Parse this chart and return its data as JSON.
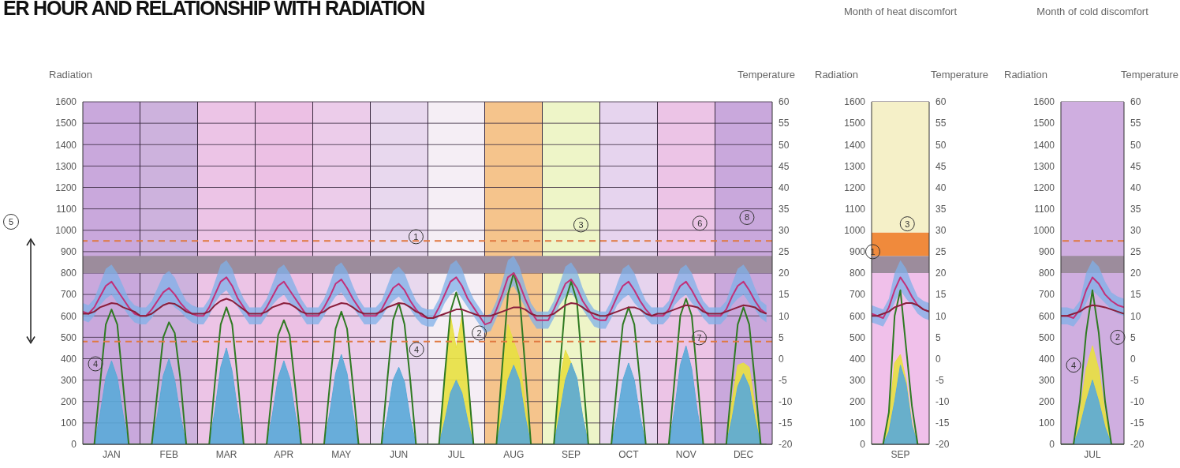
{
  "chart_data": [
    {
      "type": "line",
      "title": "ER HOUR AND RELATIONSHIP WITH RADIATION",
      "ylabel": "Radiation",
      "y2label": "Temperature",
      "categories": [
        null,
        null,
        null,
        null,
        null,
        "JAN",
        null,
        null,
        null,
        null,
        null,
        null,
        null,
        null,
        null,
        "FEB",
        null,
        null,
        null,
        null,
        null,
        null,
        null,
        null,
        null,
        "MAR",
        null,
        null,
        null,
        null,
        null,
        null,
        null,
        null,
        null,
        "APR",
        null,
        null,
        null,
        null,
        null,
        null,
        null,
        null,
        null,
        "MAY",
        null,
        null,
        null,
        null,
        null,
        null,
        null,
        null,
        null,
        "JUN",
        null,
        null,
        null,
        null,
        null,
        null,
        null,
        null,
        null,
        "JUL",
        null,
        null,
        null,
        null,
        null,
        null,
        null,
        null,
        null,
        "AUG",
        null,
        null,
        null,
        null,
        null,
        null,
        null,
        null,
        null,
        "SEP",
        null,
        null,
        null,
        null,
        null,
        null,
        null,
        null,
        null,
        "OCT",
        null,
        null,
        null,
        null,
        null,
        null,
        null,
        null,
        null,
        "NOV",
        null,
        null,
        null,
        null,
        null,
        null,
        null,
        null,
        null,
        "DEC",
        null,
        null,
        null,
        null
      ],
      "ylim": [
        0,
        1600
      ],
      "yticks": [
        0,
        100,
        200,
        300,
        400,
        500,
        600,
        700,
        800,
        900,
        1000,
        1100,
        1200,
        1300,
        1400,
        1500,
        1600
      ],
      "y2lim": [
        -20,
        60
      ],
      "y2ticks": [
        -20,
        -15,
        -10,
        -5,
        0,
        5,
        10,
        15,
        20,
        25,
        30,
        35,
        40,
        45,
        50,
        55,
        60
      ],
      "grid": "y",
      "bands": [
        {
          "axis": "y",
          "from": 800,
          "to": 880,
          "color": "#9c8c9c"
        }
      ],
      "ref_lines": [
        {
          "axis": "y2",
          "value": 27.5,
          "color": "#e07840",
          "line_style": "dashed"
        },
        {
          "axis": "y2",
          "value": 4,
          "color": "#e07840",
          "line_style": "dashed"
        }
      ],
      "annotations": [
        "1",
        "2",
        "3",
        "4",
        "4",
        "5",
        "6",
        "7",
        "8"
      ],
      "series": [
        {
          "type": "area",
          "color": "#e8e040",
          "values": [
            null,
            null,
            null,
            null,
            null,
            null,
            null,
            null,
            null,
            null,
            null,
            null,
            null,
            null,
            null,
            null,
            null,
            null,
            null,
            null,
            null,
            null,
            null,
            null,
            null,
            null,
            null,
            null,
            null,
            null,
            null,
            null,
            null,
            null,
            null,
            null,
            null,
            null,
            null,
            null,
            null,
            null,
            null,
            null,
            null,
            null,
            null,
            null,
            null,
            null,
            null,
            null,
            null,
            null,
            null,
            null,
            null,
            null,
            null,
            null,
            0,
            0,
            0,
            320,
            600,
            450,
            600,
            320,
            0,
            0,
            0,
            0,
            0,
            330,
            560,
            480,
            400,
            200,
            0,
            0,
            0,
            0,
            0,
            300,
            440,
            380,
            300,
            130,
            0,
            0,
            null,
            null,
            null,
            null,
            null,
            null,
            null,
            null,
            null,
            null,
            null,
            null,
            null,
            null,
            null,
            null,
            null,
            null,
            null,
            null,
            0,
            0,
            0,
            200,
            370,
            380,
            360,
            180,
            0,
            0
          ]
        },
        {
          "type": "area",
          "color": "#5aaad8",
          "values": [
            0,
            0,
            0,
            140,
            310,
            390,
            310,
            140,
            0,
            0,
            0,
            0,
            0,
            140,
            320,
            400,
            300,
            130,
            0,
            0,
            0,
            0,
            0,
            160,
            360,
            450,
            340,
            150,
            0,
            0,
            0,
            0,
            0,
            140,
            310,
            390,
            310,
            140,
            0,
            0,
            0,
            0,
            0,
            150,
            330,
            420,
            330,
            150,
            0,
            0,
            0,
            0,
            0,
            130,
            300,
            360,
            290,
            120,
            0,
            0,
            0,
            0,
            0,
            110,
            240,
            300,
            240,
            110,
            0,
            0,
            0,
            0,
            0,
            130,
            300,
            370,
            300,
            130,
            0,
            0,
            0,
            0,
            0,
            140,
            300,
            380,
            310,
            130,
            0,
            0,
            0,
            0,
            0,
            130,
            300,
            380,
            300,
            130,
            0,
            0,
            0,
            0,
            0,
            160,
            370,
            460,
            350,
            150,
            0,
            0,
            0,
            0,
            0,
            120,
            270,
            330,
            270,
            120,
            0,
            0
          ]
        },
        {
          "type": "line",
          "color": "#2f7a22",
          "values": [
            0,
            0,
            0,
            280,
            560,
            630,
            560,
            280,
            0,
            0,
            0,
            0,
            0,
            250,
            500,
            570,
            520,
            300,
            0,
            0,
            0,
            0,
            0,
            290,
            560,
            640,
            560,
            290,
            0,
            0,
            0,
            0,
            0,
            260,
            510,
            580,
            510,
            260,
            0,
            0,
            0,
            0,
            0,
            280,
            540,
            620,
            540,
            280,
            0,
            0,
            0,
            0,
            0,
            300,
            580,
            660,
            560,
            300,
            0,
            0,
            0,
            0,
            0,
            320,
            620,
            710,
            620,
            320,
            0,
            0,
            0,
            0,
            0,
            360,
            700,
            800,
            700,
            360,
            0,
            0,
            0,
            0,
            0,
            340,
            670,
            760,
            670,
            340,
            0,
            0,
            0,
            0,
            0,
            290,
            560,
            640,
            560,
            290,
            0,
            0,
            0,
            0,
            0,
            300,
            600,
            680,
            600,
            300,
            0,
            0,
            0,
            0,
            0,
            290,
            560,
            640,
            560,
            290,
            0,
            0
          ]
        },
        {
          "type": "line",
          "axis": "y2",
          "color": "#c2317a",
          "values": [
            11,
            10.5,
            12,
            14.5,
            17,
            18,
            16,
            14,
            12,
            10.5,
            10,
            10,
            11.5,
            13.5,
            15.5,
            16.5,
            15,
            13,
            11.5,
            10.5,
            10,
            10,
            12,
            15,
            18,
            19,
            17,
            14,
            12,
            10,
            10,
            10,
            12,
            14.5,
            17,
            18,
            16,
            14,
            12,
            10,
            10,
            10,
            12,
            14.5,
            17.5,
            18.5,
            16.5,
            14,
            12,
            10,
            10,
            10,
            11.5,
            14,
            16.5,
            17.5,
            16,
            13.5,
            11.5,
            10,
            9.5,
            9.5,
            12,
            15,
            18,
            19,
            17,
            14,
            12,
            10,
            8,
            8.5,
            11.5,
            15,
            19,
            20,
            17.5,
            14,
            11,
            9,
            9,
            9,
            11.5,
            14.5,
            17.5,
            18.5,
            16.5,
            13.5,
            11.5,
            9.5,
            9,
            9,
            11.5,
            14.5,
            17,
            18,
            16,
            13.5,
            11.5,
            10,
            10,
            10,
            11.5,
            14.5,
            17,
            18,
            16,
            13.5,
            11.5,
            10,
            10,
            10,
            11.5,
            14.5,
            17,
            18,
            16,
            13.5,
            11.5,
            10.5
          ],
          "lower": [
            9,
            8.5,
            10,
            12.5,
            14,
            15,
            13,
            12,
            10,
            8.5,
            8,
            8,
            9.5,
            11.5,
            12.5,
            13.5,
            12,
            11,
            9.5,
            8.5,
            8,
            8,
            10,
            13,
            15,
            16,
            14,
            12,
            10,
            8,
            8,
            8,
            10,
            12.5,
            14,
            15,
            13,
            12,
            10,
            8,
            8,
            8,
            10,
            12.5,
            14.5,
            15.5,
            13.5,
            12,
            10,
            8,
            8,
            8,
            9.5,
            12,
            13.5,
            14.5,
            13,
            11.5,
            9.5,
            8,
            7.5,
            7.5,
            10,
            13,
            15,
            16,
            14,
            12,
            10,
            8,
            6,
            6.5,
            9.5,
            13,
            16,
            17,
            14.5,
            12,
            9,
            7,
            7,
            7,
            9.5,
            12.5,
            14.5,
            15.5,
            13.5,
            11.5,
            9.5,
            7.5,
            7,
            7,
            9.5,
            12.5,
            14,
            15,
            13,
            11.5,
            9.5,
            8,
            8,
            8,
            9.5,
            12.5,
            14,
            15,
            13,
            11.5,
            9.5,
            8,
            8,
            8,
            9.5,
            12.5,
            14,
            15,
            13,
            11.5,
            9.5,
            8.5
          ],
          "upper": [
            13,
            12.5,
            14,
            17.5,
            21,
            22,
            20,
            17,
            14,
            12.5,
            12,
            12,
            13.5,
            16.5,
            19.5,
            20.5,
            19,
            16,
            13.5,
            12.5,
            12,
            12,
            14,
            18,
            22,
            23,
            21,
            17,
            14,
            12,
            12,
            12,
            14,
            17.5,
            21,
            22,
            20,
            17,
            14,
            12,
            12,
            12,
            14,
            17.5,
            21.5,
            22.5,
            20.5,
            17,
            14,
            12,
            12,
            12,
            13.5,
            17,
            20.5,
            21.5,
            20,
            16.5,
            13.5,
            12,
            11.5,
            11.5,
            14,
            18,
            22,
            23,
            21,
            17,
            14,
            12,
            10,
            10.5,
            13.5,
            18,
            23,
            24,
            21.5,
            17,
            13,
            11,
            11,
            11,
            13.5,
            17.5,
            21.5,
            22.5,
            20.5,
            16.5,
            13.5,
            11.5,
            11,
            11,
            13.5,
            17.5,
            21,
            22,
            20,
            16.5,
            13.5,
            12,
            12,
            12,
            13.5,
            17.5,
            21,
            22,
            20,
            16.5,
            13.5,
            12,
            12,
            12,
            13.5,
            17.5,
            21,
            22,
            20,
            16.5,
            13.5,
            12.5
          ]
        },
        {
          "type": "line",
          "axis": "y2",
          "color": "#8a1f3c",
          "values": [
            10.5,
            10.5,
            11,
            12,
            12.5,
            13,
            12.8,
            12,
            11.5,
            11,
            10,
            10,
            10.5,
            11.5,
            12.5,
            13,
            12.8,
            12,
            11,
            10.5,
            10.5,
            10.5,
            11,
            12.5,
            13.5,
            14,
            13.5,
            12.5,
            11.5,
            10.5,
            10.5,
            10.5,
            11,
            12,
            12.5,
            13,
            12.8,
            12,
            11,
            10.5,
            10.5,
            10.5,
            11,
            12,
            12.5,
            13,
            12.8,
            12,
            11,
            10.5,
            10.5,
            10.5,
            11,
            12,
            12.5,
            13,
            12.8,
            12,
            11,
            10.5,
            9.5,
            9.5,
            10,
            10.5,
            11,
            11.5,
            11.5,
            11,
            10.5,
            10,
            10,
            10,
            10.5,
            11,
            11.5,
            12,
            12,
            11.5,
            10.5,
            10,
            10,
            10,
            10.5,
            11.5,
            12.5,
            13,
            12.8,
            12,
            11,
            10.5,
            10,
            10,
            10.5,
            11,
            11.5,
            12,
            12,
            11.5,
            10.5,
            10,
            10.5,
            10.5,
            11,
            11.5,
            12,
            12.5,
            12.3,
            12,
            11,
            10.5,
            10.5,
            10.5,
            11,
            11.5,
            12,
            12.5,
            12.3,
            12,
            11,
            10.5
          ]
        }
      ]
    },
    {
      "type": "line",
      "title": "Month of heat discomfort",
      "ylabel": "Radiation",
      "y2label": "Temperature",
      "categories": [
        null,
        null,
        null,
        null,
        null,
        "SEP",
        null,
        null,
        null,
        null,
        null
      ],
      "ylim": [
        0,
        1600
      ],
      "yticks": [
        0,
        100,
        200,
        300,
        400,
        500,
        600,
        700,
        800,
        900,
        1000,
        1100,
        1200,
        1300,
        1400,
        1500,
        1600
      ],
      "y2lim": [
        -20,
        60
      ],
      "y2ticks": [
        -20,
        -15,
        -10,
        -5,
        0,
        5,
        10,
        15,
        20,
        25,
        30,
        35,
        40,
        45,
        50,
        55,
        60
      ],
      "grid": "y",
      "bands": [
        {
          "axis": "y",
          "from": 0,
          "to": 800,
          "color": "#f0c0ea"
        },
        {
          "axis": "y",
          "from": 800,
          "to": 880,
          "color": "#9c8c9c"
        },
        {
          "axis": "y",
          "from": 880,
          "to": 990,
          "color": "#f08a3c"
        },
        {
          "axis": "y",
          "from": 990,
          "to": 1600,
          "color": "#f5f0c8"
        }
      ],
      "annotations": [
        "1",
        "3"
      ],
      "series": [
        {
          "type": "area",
          "color": "#e8e040",
          "values": [
            0,
            0,
            0,
            120,
            380,
            420,
            300,
            100,
            0,
            0,
            0
          ]
        },
        {
          "type": "area",
          "color": "#5aaad8",
          "values": [
            0,
            0,
            0,
            60,
            200,
            370,
            280,
            90,
            0,
            0,
            0
          ]
        },
        {
          "type": "line",
          "color": "#2f7a22",
          "values": [
            0,
            0,
            0,
            150,
            600,
            720,
            450,
            180,
            0,
            0,
            0
          ]
        },
        {
          "type": "line",
          "axis": "y2",
          "color": "#c2317a",
          "values": [
            10.5,
            10,
            9.5,
            12,
            16,
            19,
            17,
            14.5,
            12.5,
            11.5,
            11
          ],
          "lower": [
            8.5,
            8,
            7.5,
            10,
            13,
            16,
            14,
            12.5,
            10.5,
            9.5,
            9
          ],
          "upper": [
            12.5,
            12,
            11.5,
            14,
            20,
            23,
            21,
            17.5,
            14.5,
            13.5,
            13
          ]
        },
        {
          "type": "line",
          "axis": "y2",
          "color": "#8a1f3c",
          "values": [
            10,
            10,
            10.5,
            11,
            12,
            12.5,
            13,
            13,
            12.5,
            11.5,
            11
          ]
        }
      ]
    },
    {
      "type": "line",
      "title": "Month of cold discomfort",
      "ylabel": "Radiation",
      "y2label": "Temperature",
      "categories": [
        null,
        null,
        null,
        null,
        null,
        "JUL",
        null,
        null,
        null,
        null,
        null
      ],
      "ylim": [
        0,
        1600
      ],
      "yticks": [
        0,
        100,
        200,
        300,
        400,
        500,
        600,
        700,
        800,
        900,
        1000,
        1100,
        1200,
        1300,
        1400,
        1500,
        1600
      ],
      "y2lim": [
        -20,
        60
      ],
      "y2ticks": [
        -20,
        -15,
        -10,
        -5,
        0,
        5,
        10,
        15,
        20,
        25,
        30,
        35,
        40,
        45,
        50,
        55,
        60
      ],
      "grid": "y",
      "bands": [
        {
          "axis": "y",
          "from": 0,
          "to": 1600,
          "color": "#cfaee0"
        },
        {
          "axis": "y",
          "from": 800,
          "to": 880,
          "color": "#9c8c9c"
        }
      ],
      "ref_lines": [
        {
          "axis": "y2",
          "value": 27.5,
          "color": "#e07840",
          "line_style": "dashed"
        }
      ],
      "annotations": [
        "4",
        "2"
      ],
      "series": [
        {
          "type": "area",
          "color": "#e8e040",
          "values": [
            0,
            0,
            0,
            150,
            350,
            460,
            350,
            150,
            0,
            0,
            0
          ]
        },
        {
          "type": "area",
          "color": "#5aaad8",
          "values": [
            0,
            0,
            0,
            80,
            200,
            300,
            200,
            80,
            0,
            0,
            0
          ]
        },
        {
          "type": "line",
          "color": "#2f7a22",
          "values": [
            0,
            0,
            0,
            200,
            520,
            720,
            520,
            200,
            0,
            0,
            0
          ]
        },
        {
          "type": "line",
          "axis": "y2",
          "color": "#c2317a",
          "values": [
            10,
            10,
            9.5,
            11.5,
            16,
            19,
            17.5,
            15,
            13.5,
            12.5,
            12
          ],
          "lower": [
            8,
            8,
            7.5,
            9.5,
            13,
            16,
            14.5,
            13,
            11.5,
            10.5,
            10
          ],
          "upper": [
            12,
            12,
            11.5,
            13.5,
            20,
            23,
            21.5,
            18,
            15.5,
            14.5,
            14
          ]
        },
        {
          "type": "line",
          "axis": "y2",
          "color": "#8a1f3c",
          "values": [
            10,
            10,
            10.5,
            11,
            12,
            12.5,
            12.3,
            12,
            11.5,
            11,
            10.5
          ]
        }
      ]
    }
  ]
}
